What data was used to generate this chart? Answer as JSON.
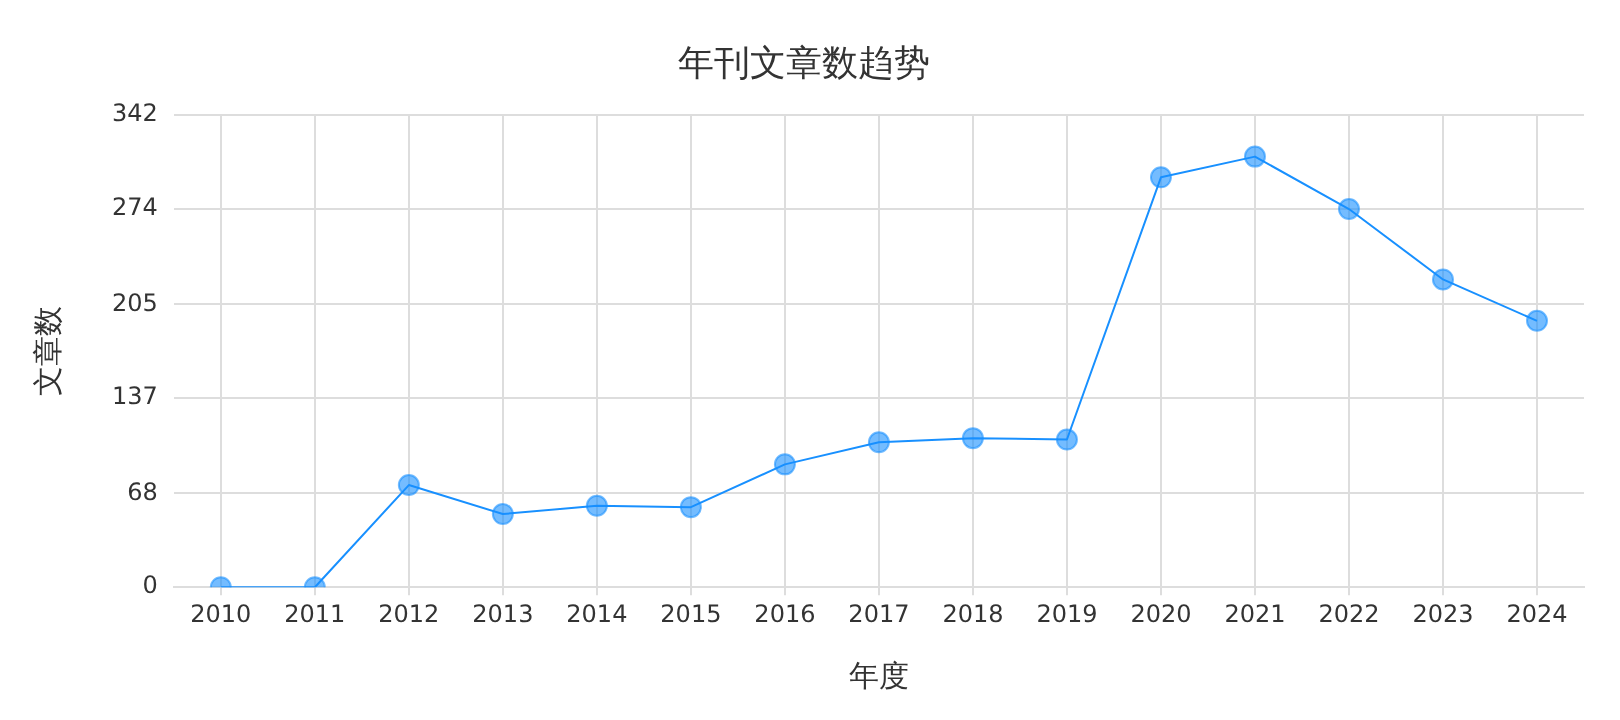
{
  "chart_data": {
    "type": "line",
    "title": "年刊文章数趋势",
    "xlabel": "年度",
    "ylabel": "文章数",
    "categories": [
      "2010",
      "2011",
      "2012",
      "2013",
      "2014",
      "2015",
      "2016",
      "2017",
      "2018",
      "2019",
      "2020",
      "2021",
      "2022",
      "2023",
      "2024"
    ],
    "series": [
      {
        "color": "#1890ff",
        "values": [
          0,
          0,
          74,
          53,
          59,
          58,
          89,
          105,
          108,
          107,
          297,
          312,
          274,
          223,
          193
        ]
      }
    ],
    "ylim": [
      0,
      342
    ],
    "yticks": [
      0,
      68,
      137,
      205,
      274,
      342
    ],
    "grid": true,
    "marker": "circle",
    "line_style": "solid",
    "legend": false
  }
}
